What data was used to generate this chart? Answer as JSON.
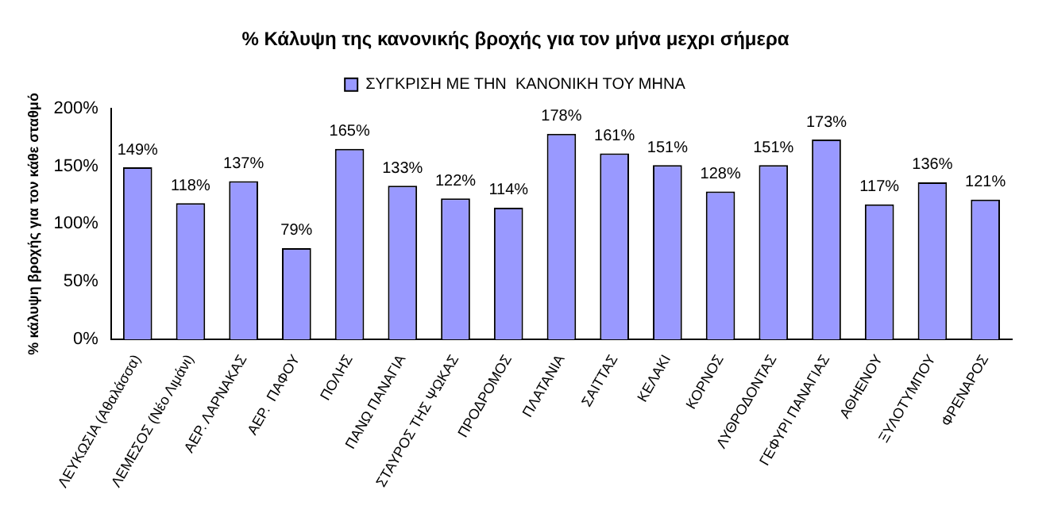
{
  "chart_data": {
    "type": "bar",
    "title": "% Κάλυψη της κανονικής βροχής για τον μήνα μεχρι σήμερα",
    "ylabel": "% κάλυψη βροχής για τον κάθε σταθμό",
    "categories": [
      "ΛΕΥΚΩΣΙΑ (Αθαλάσσα)",
      "ΛΕΜΕΣΟΣ (Νέο Λιμάνι)",
      "ΑΕΡ. ΛΑΡΝΑΚΑΣ",
      "ΑΕΡ.  ΠΑΦΟΥ",
      "ΠΟΛΗΣ",
      "ΠΑΝΩ ΠΑΝΑΓΙΑ",
      "ΣΤΑΥΡΟΣ ΤΗΣ ΨΩΚΑΣ",
      "ΠΡΟΔΡΟΜΟΣ",
      "ΠΛΑΤΑΝΙΑ",
      "ΣΑΙΤΤΑΣ",
      "ΚΕΛΑΚΙ",
      "ΚΟΡΝΟΣ",
      "ΛΥΘΡΟΔΟΝΤΑΣ",
      "ΓΕΦΥΡΙ ΠΑΝΑΓΙΑΣ",
      "ΑΘΗΕΝΟΥ",
      "ΞΥΛΟΤΥΜΠΟΥ",
      "ΦΡΕΝΑΡΟΣ"
    ],
    "series": [
      {
        "name": "ΣΥΓΚΡΙΣΗ ΜΕ ΤΗΝ  ΚΑΝΟΝΙΚΗ ΤΟΥ ΜΗΝΑ",
        "color": "#9999ff",
        "values": [
          149,
          118,
          137,
          79,
          165,
          133,
          122,
          114,
          178,
          161,
          151,
          128,
          151,
          173,
          117,
          136,
          121
        ],
        "value_labels": [
          "149%",
          "118%",
          "137%",
          "79%",
          "165%",
          "133%",
          "122%",
          "114%",
          "178%",
          "161%",
          "151%",
          "128%",
          "151%",
          "173%",
          "117%",
          "136%",
          "121%"
        ]
      }
    ],
    "ylim": [
      0,
      200
    ],
    "yticks": [
      {
        "value": 0,
        "label": "0%"
      },
      {
        "value": 50,
        "label": "50%"
      },
      {
        "value": 100,
        "label": "100%"
      },
      {
        "value": 150,
        "label": "150%"
      },
      {
        "value": 200,
        "label": "200%"
      }
    ],
    "grid": false,
    "legend": "top"
  }
}
